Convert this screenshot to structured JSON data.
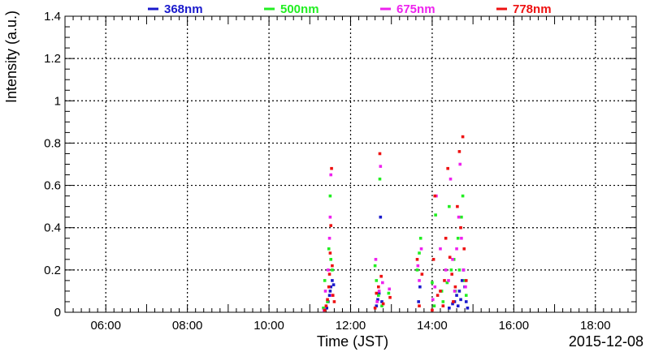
{
  "chart_data": {
    "type": "scatter",
    "title": "",
    "xlabel": "Time (JST)",
    "ylabel": "Intensity (a.u.)",
    "date_label": "2015-12-08",
    "xlim": [
      "05:00",
      "19:00"
    ],
    "ylim": [
      0,
      1.4
    ],
    "x_ticks": [
      "06:00",
      "08:00",
      "10:00",
      "12:00",
      "14:00",
      "16:00",
      "18:00"
    ],
    "y_ticks": [
      "0",
      "0.2",
      "0.4",
      "0.6",
      "0.8",
      "1",
      "1.2",
      "1.4"
    ],
    "grid": true,
    "legend_position": "top",
    "series": [
      {
        "name": "368nm",
        "color": "#1a1acc",
        "points": [
          [
            "11:25",
            0.02
          ],
          [
            "11:27",
            0.05
          ],
          [
            "11:29",
            0.08
          ],
          [
            "11:30",
            0.1
          ],
          [
            "11:31",
            0.12
          ],
          [
            "11:33",
            0.15
          ],
          [
            "11:35",
            0.13
          ],
          [
            "12:38",
            0.03
          ],
          [
            "12:40",
            0.06
          ],
          [
            "12:42",
            0.09
          ],
          [
            "12:44",
            0.45
          ],
          [
            "12:46",
            0.05
          ],
          [
            "13:40",
            0.05
          ],
          [
            "13:42",
            0.12
          ],
          [
            "14:25",
            0.02
          ],
          [
            "14:30",
            0.04
          ],
          [
            "14:33",
            0.05
          ],
          [
            "14:36",
            0.08
          ],
          [
            "14:38",
            0.03
          ],
          [
            "14:40",
            0.1
          ],
          [
            "14:42",
            0.06
          ],
          [
            "14:44",
            0.15
          ],
          [
            "14:46",
            0.2
          ],
          [
            "14:48",
            0.12
          ],
          [
            "14:50",
            0.05
          ],
          [
            "14:52",
            0.02
          ]
        ]
      },
      {
        "name": "500nm",
        "color": "#22ee22",
        "points": [
          [
            "11:20",
            0.02
          ],
          [
            "11:22",
            0.15
          ],
          [
            "11:26",
            0.05
          ],
          [
            "11:28",
            0.3
          ],
          [
            "11:30",
            0.55
          ],
          [
            "11:31",
            0.25
          ],
          [
            "11:33",
            0.2
          ],
          [
            "12:36",
            0.22
          ],
          [
            "12:38",
            0.15
          ],
          [
            "12:41",
            0.08
          ],
          [
            "12:43",
            0.63
          ],
          [
            "12:46",
            0.03
          ],
          [
            "12:56",
            0.09
          ],
          [
            "13:38",
            0.2
          ],
          [
            "13:41",
            0.28
          ],
          [
            "13:43",
            0.35
          ],
          [
            "14:00",
            0.14
          ],
          [
            "14:03",
            0.03
          ],
          [
            "14:05",
            0.46
          ],
          [
            "14:14",
            0.1
          ],
          [
            "14:16",
            0.05
          ],
          [
            "14:22",
            0.14
          ],
          [
            "14:25",
            0.5
          ],
          [
            "14:28",
            0.2
          ],
          [
            "14:32",
            0.25
          ],
          [
            "14:34",
            0.1
          ],
          [
            "14:38",
            0.35
          ],
          [
            "14:40",
            0.2
          ],
          [
            "14:43",
            0.45
          ],
          [
            "14:45",
            0.55
          ],
          [
            "14:48",
            0.15
          ],
          [
            "14:50",
            0.08
          ]
        ]
      },
      {
        "name": "675nm",
        "color": "#ee22ee",
        "points": [
          [
            "11:21",
            0.01
          ],
          [
            "11:23",
            0.1
          ],
          [
            "11:27",
            0.2
          ],
          [
            "11:29",
            0.35
          ],
          [
            "11:30",
            0.45
          ],
          [
            "11:31",
            0.65
          ],
          [
            "11:33",
            0.08
          ],
          [
            "12:37",
            0.25
          ],
          [
            "12:39",
            0.05
          ],
          [
            "12:42",
            0.1
          ],
          [
            "12:44",
            0.69
          ],
          [
            "12:47",
            0.14
          ],
          [
            "12:57",
            0.11
          ],
          [
            "13:39",
            0.22
          ],
          [
            "13:41",
            0.15
          ],
          [
            "13:44",
            0.3
          ],
          [
            "14:01",
            0.06
          ],
          [
            "14:04",
            0.12
          ],
          [
            "14:06",
            0.55
          ],
          [
            "14:12",
            0.3
          ],
          [
            "14:16",
            0.03
          ],
          [
            "14:20",
            0.2
          ],
          [
            "14:24",
            0.15
          ],
          [
            "14:27",
            0.63
          ],
          [
            "14:30",
            0.25
          ],
          [
            "14:33",
            0.1
          ],
          [
            "14:36",
            0.3
          ],
          [
            "14:39",
            0.45
          ],
          [
            "14:41",
            0.7
          ],
          [
            "14:43",
            0.35
          ],
          [
            "14:46",
            0.2
          ],
          [
            "14:49",
            0.12
          ]
        ]
      },
      {
        "name": "778nm",
        "color": "#ee1111",
        "points": [
          [
            "11:22",
            0.01
          ],
          [
            "11:24",
            0.03
          ],
          [
            "11:26",
            0.06
          ],
          [
            "11:28",
            0.12
          ],
          [
            "11:29",
            0.18
          ],
          [
            "11:30",
            0.28
          ],
          [
            "11:31",
            0.41
          ],
          [
            "11:32",
            0.68
          ],
          [
            "11:33",
            0.22
          ],
          [
            "11:34",
            0.08
          ],
          [
            "11:36",
            0.05
          ],
          [
            "12:36",
            0.02
          ],
          [
            "12:38",
            0.09
          ],
          [
            "12:41",
            0.12
          ],
          [
            "12:43",
            0.75
          ],
          [
            "12:45",
            0.17
          ],
          [
            "12:48",
            0.04
          ],
          [
            "12:58",
            0.07
          ],
          [
            "13:38",
            0.25
          ],
          [
            "13:41",
            0.03
          ],
          [
            "13:45",
            0.18
          ],
          [
            "14:00",
            0.01
          ],
          [
            "14:02",
            0.25
          ],
          [
            "14:04",
            0.55
          ],
          [
            "14:08",
            0.08
          ],
          [
            "14:12",
            0.1
          ],
          [
            "14:16",
            0.03
          ],
          [
            "14:18",
            0.15
          ],
          [
            "14:20",
            0.35
          ],
          [
            "14:23",
            0.68
          ],
          [
            "14:26",
            0.26
          ],
          [
            "14:29",
            0.18
          ],
          [
            "14:31",
            0.05
          ],
          [
            "14:34",
            0.12
          ],
          [
            "14:37",
            0.5
          ],
          [
            "14:40",
            0.76
          ],
          [
            "14:42",
            0.4
          ],
          [
            "14:45",
            0.83
          ],
          [
            "14:47",
            0.3
          ],
          [
            "14:50",
            0.15
          ]
        ]
      }
    ]
  }
}
